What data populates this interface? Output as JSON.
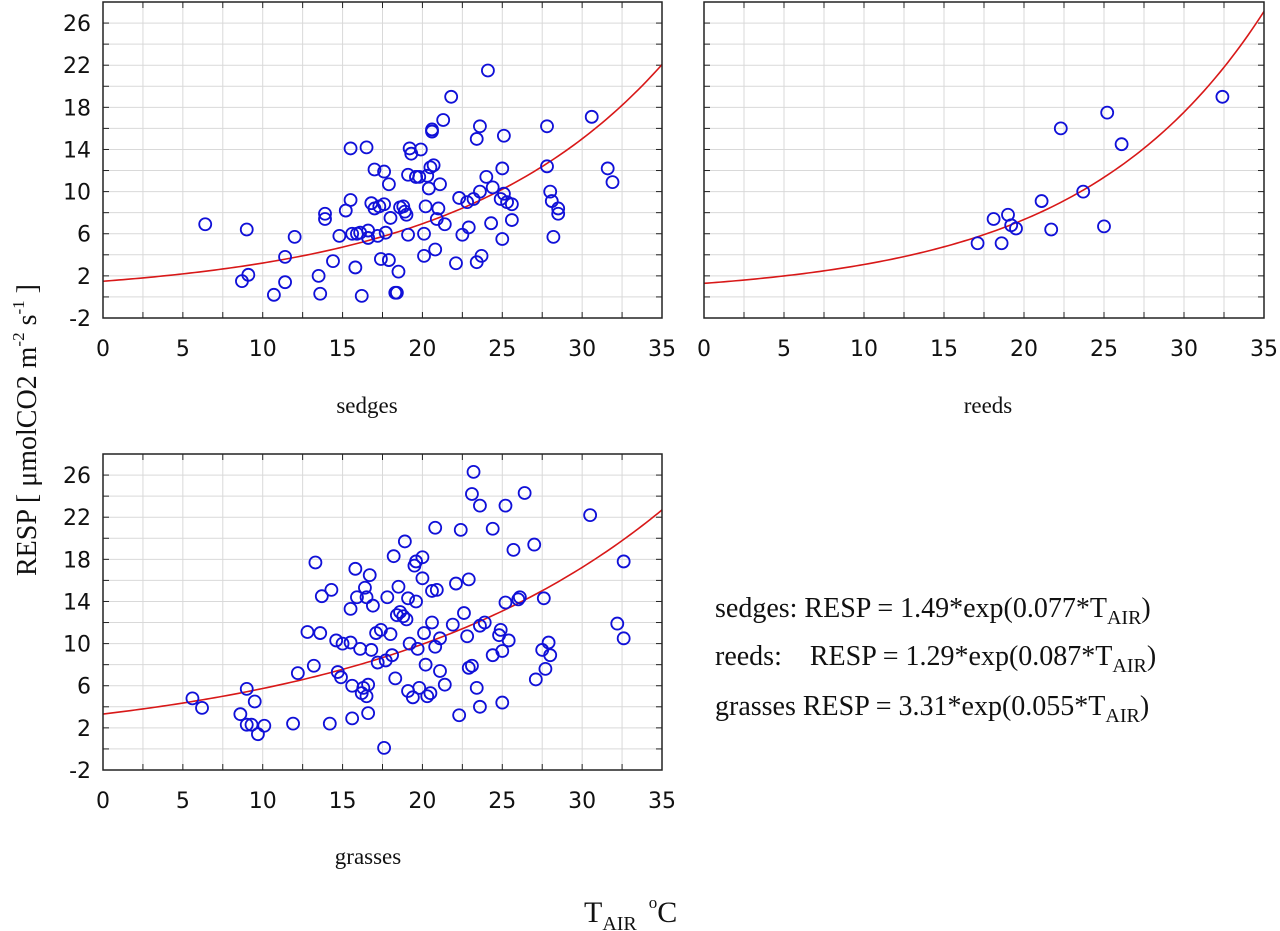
{
  "colors": {
    "points": "#1010d8",
    "fit": "#d81818",
    "grid": "#d9d9d9"
  },
  "figure": {
    "ylabel_main": "RESP  [ μmolCO2 m",
    "ylabel_sup1": "-2",
    "ylabel_mid": " s",
    "ylabel_sup2": "-1",
    "ylabel_end": " ]",
    "xlabel_main": "T",
    "xlabel_sub": "AIR",
    "xlabel_unit_sup": "o",
    "xlabel_unit": "C",
    "equations": [
      {
        "prefix": "sedges: RESP = 1.49*exp(0.077*T",
        "sub": "AIR",
        "suffix": ")"
      },
      {
        "prefix": "reeds:    RESP = 1.29*exp(0.087*T",
        "sub": "AIR",
        "suffix": ")"
      },
      {
        "prefix": "grasses RESP = 3.31*exp(0.055*T",
        "sub": "AIR",
        "suffix": ")"
      }
    ]
  },
  "chart_data": [
    {
      "type": "scatter",
      "title": "sedges",
      "xlabel": "T_AIR °C",
      "ylabel": "RESP [μmolCO2 m-2 s-1]",
      "xlim": [
        0,
        35
      ],
      "ylim": [
        -2,
        28
      ],
      "xticks": [
        0,
        5,
        10,
        15,
        20,
        25,
        30,
        35
      ],
      "yticks": [
        -2,
        2,
        6,
        10,
        14,
        18,
        22,
        26
      ],
      "fit": {
        "a": 1.49,
        "b": 0.077,
        "label": "RESP = 1.49*exp(0.077*T_AIR)"
      },
      "points": [
        [
          6.4,
          6.9
        ],
        [
          8.7,
          1.5
        ],
        [
          9.0,
          6.4
        ],
        [
          9.1,
          2.1
        ],
        [
          10.7,
          0.2
        ],
        [
          11.4,
          3.8
        ],
        [
          11.4,
          1.4
        ],
        [
          12.0,
          5.7
        ],
        [
          13.5,
          2.0
        ],
        [
          13.6,
          0.3
        ],
        [
          13.9,
          7.4
        ],
        [
          13.9,
          7.9
        ],
        [
          14.4,
          3.4
        ],
        [
          14.8,
          5.8
        ],
        [
          15.2,
          8.2
        ],
        [
          15.5,
          9.2
        ],
        [
          15.5,
          14.1
        ],
        [
          15.6,
          6.0
        ],
        [
          15.8,
          2.8
        ],
        [
          16.1,
          6.1
        ],
        [
          16.2,
          0.1
        ],
        [
          16.5,
          14.2
        ],
        [
          16.6,
          5.6
        ],
        [
          16.6,
          6.3
        ],
        [
          16.8,
          8.9
        ],
        [
          17.0,
          12.1
        ],
        [
          17.0,
          8.4
        ],
        [
          17.2,
          5.8
        ],
        [
          17.3,
          8.6
        ],
        [
          17.4,
          3.6
        ],
        [
          17.6,
          8.8
        ],
        [
          17.7,
          6.1
        ],
        [
          17.9,
          3.5
        ],
        [
          17.9,
          10.7
        ],
        [
          18.0,
          7.5
        ],
        [
          18.3,
          0.4
        ],
        [
          18.4,
          0.4
        ],
        [
          18.5,
          2.4
        ],
        [
          18.6,
          8.5
        ],
        [
          18.8,
          8.6
        ],
        [
          19.0,
          7.8
        ],
        [
          19.1,
          11.6
        ],
        [
          19.1,
          5.9
        ],
        [
          19.2,
          14.1
        ],
        [
          19.3,
          13.6
        ],
        [
          19.6,
          11.4
        ],
        [
          19.8,
          11.4
        ],
        [
          19.9,
          14.0
        ],
        [
          20.1,
          6.0
        ],
        [
          20.1,
          3.9
        ],
        [
          20.2,
          8.6
        ],
        [
          20.3,
          11.5
        ],
        [
          20.4,
          10.3
        ],
        [
          20.5,
          12.3
        ],
        [
          20.6,
          15.7
        ],
        [
          20.7,
          12.5
        ],
        [
          20.8,
          4.5
        ],
        [
          20.9,
          7.4
        ],
        [
          21.0,
          8.4
        ],
        [
          21.1,
          10.7
        ],
        [
          21.3,
          16.8
        ],
        [
          21.4,
          6.9
        ],
        [
          21.8,
          19.0
        ],
        [
          22.1,
          3.2
        ],
        [
          22.3,
          9.4
        ],
        [
          22.5,
          5.9
        ],
        [
          22.9,
          6.6
        ],
        [
          23.2,
          9.3
        ],
        [
          23.4,
          15.0
        ],
        [
          23.4,
          3.3
        ],
        [
          23.6,
          16.2
        ],
        [
          23.6,
          10.0
        ],
        [
          23.7,
          3.9
        ],
        [
          24.0,
          11.4
        ],
        [
          24.1,
          21.5
        ],
        [
          24.3,
          7.0
        ],
        [
          24.4,
          10.4
        ],
        [
          25.0,
          5.5
        ],
        [
          25.0,
          12.2
        ],
        [
          25.1,
          15.3
        ],
        [
          25.1,
          9.8
        ],
        [
          25.3,
          9.0
        ],
        [
          25.6,
          8.8
        ],
        [
          25.6,
          7.3
        ],
        [
          27.8,
          12.4
        ],
        [
          27.8,
          16.2
        ],
        [
          28.0,
          10.0
        ],
        [
          28.1,
          9.1
        ],
        [
          28.2,
          5.7
        ],
        [
          28.5,
          8.4
        ],
        [
          28.5,
          7.9
        ],
        [
          30.6,
          17.1
        ],
        [
          31.6,
          12.2
        ],
        [
          31.9,
          10.9
        ],
        [
          20.6,
          15.9
        ],
        [
          19.6,
          11.4
        ],
        [
          22.8,
          9.0
        ],
        [
          24.9,
          9.3
        ],
        [
          18.9,
          8.1
        ],
        [
          15.9,
          6.0
        ],
        [
          17.6,
          11.9
        ]
      ]
    },
    {
      "type": "scatter",
      "title": "reeds",
      "xlabel": "T_AIR °C",
      "ylabel": "RESP [μmolCO2 m-2 s-1]",
      "xlim": [
        0,
        35
      ],
      "ylim": [
        -2,
        28
      ],
      "xticks": [
        0,
        5,
        10,
        15,
        20,
        25,
        30,
        35
      ],
      "yticks": [],
      "fit": {
        "a": 1.29,
        "b": 0.087,
        "label": "RESP = 1.29*exp(0.087*T_AIR)"
      },
      "points": [
        [
          17.1,
          5.1
        ],
        [
          18.1,
          7.4
        ],
        [
          18.6,
          5.1
        ],
        [
          19.0,
          7.8
        ],
        [
          19.2,
          6.8
        ],
        [
          19.5,
          6.5
        ],
        [
          21.1,
          9.1
        ],
        [
          21.7,
          6.4
        ],
        [
          22.3,
          16.0
        ],
        [
          23.7,
          10.0
        ],
        [
          25.0,
          6.7
        ],
        [
          25.2,
          17.5
        ],
        [
          26.1,
          14.5
        ],
        [
          32.4,
          19.0
        ]
      ]
    },
    {
      "type": "scatter",
      "title": "grasses",
      "xlabel": "T_AIR °C",
      "ylabel": "RESP [μmolCO2 m-2 s-1]",
      "xlim": [
        0,
        35
      ],
      "ylim": [
        -2,
        28
      ],
      "xticks": [
        0,
        5,
        10,
        15,
        20,
        25,
        30,
        35
      ],
      "yticks": [
        -2,
        2,
        6,
        10,
        14,
        18,
        22,
        26
      ],
      "fit": {
        "a": 3.31,
        "b": 0.055,
        "label": "RESP = 3.31*exp(0.055*T_AIR)"
      },
      "points": [
        [
          5.6,
          4.8
        ],
        [
          6.2,
          3.9
        ],
        [
          8.6,
          3.3
        ],
        [
          9.0,
          5.7
        ],
        [
          9.0,
          2.3
        ],
        [
          9.3,
          2.3
        ],
        [
          9.5,
          4.5
        ],
        [
          9.7,
          1.4
        ],
        [
          10.1,
          2.2
        ],
        [
          11.9,
          2.4
        ],
        [
          12.2,
          7.2
        ],
        [
          12.8,
          11.1
        ],
        [
          13.2,
          7.9
        ],
        [
          13.3,
          17.7
        ],
        [
          13.6,
          11.0
        ],
        [
          13.7,
          14.5
        ],
        [
          14.2,
          2.4
        ],
        [
          14.3,
          15.1
        ],
        [
          14.6,
          10.3
        ],
        [
          14.7,
          7.3
        ],
        [
          14.9,
          6.8
        ],
        [
          15.0,
          10.0
        ],
        [
          15.5,
          10.1
        ],
        [
          15.5,
          13.3
        ],
        [
          15.6,
          2.9
        ],
        [
          15.6,
          6.0
        ],
        [
          15.8,
          17.1
        ],
        [
          15.9,
          14.4
        ],
        [
          16.1,
          9.5
        ],
        [
          16.2,
          5.3
        ],
        [
          16.3,
          5.8
        ],
        [
          16.4,
          15.3
        ],
        [
          16.5,
          14.4
        ],
        [
          16.6,
          3.4
        ],
        [
          16.6,
          6.1
        ],
        [
          16.7,
          16.5
        ],
        [
          16.8,
          9.4
        ],
        [
          16.9,
          13.6
        ],
        [
          17.1,
          11.0
        ],
        [
          17.2,
          8.2
        ],
        [
          17.4,
          11.3
        ],
        [
          17.6,
          0.1
        ],
        [
          17.7,
          8.4
        ],
        [
          17.8,
          14.4
        ],
        [
          18.0,
          10.9
        ],
        [
          18.1,
          8.9
        ],
        [
          18.2,
          18.3
        ],
        [
          18.3,
          6.7
        ],
        [
          18.4,
          12.7
        ],
        [
          18.5,
          15.4
        ],
        [
          18.6,
          13.0
        ],
        [
          18.8,
          12.6
        ],
        [
          18.9,
          19.7
        ],
        [
          19.0,
          12.3
        ],
        [
          19.1,
          14.3
        ],
        [
          19.1,
          5.5
        ],
        [
          19.2,
          10.0
        ],
        [
          19.4,
          4.9
        ],
        [
          19.5,
          17.4
        ],
        [
          19.6,
          17.8
        ],
        [
          19.6,
          14.0
        ],
        [
          19.7,
          9.5
        ],
        [
          19.8,
          5.8
        ],
        [
          20.0,
          16.2
        ],
        [
          20.0,
          18.2
        ],
        [
          20.1,
          11.0
        ],
        [
          20.2,
          8.0
        ],
        [
          20.3,
          5.0
        ],
        [
          20.5,
          5.3
        ],
        [
          20.6,
          12.0
        ],
        [
          20.6,
          15.0
        ],
        [
          20.8,
          9.7
        ],
        [
          20.8,
          21.0
        ],
        [
          20.9,
          15.1
        ],
        [
          21.1,
          10.5
        ],
        [
          21.1,
          7.4
        ],
        [
          21.4,
          6.1
        ],
        [
          21.9,
          11.8
        ],
        [
          22.1,
          15.7
        ],
        [
          22.3,
          3.2
        ],
        [
          22.4,
          20.8
        ],
        [
          22.6,
          12.9
        ],
        [
          22.8,
          10.7
        ],
        [
          22.9,
          16.1
        ],
        [
          22.9,
          7.7
        ],
        [
          23.1,
          24.2
        ],
        [
          23.1,
          7.9
        ],
        [
          23.2,
          26.3
        ],
        [
          23.4,
          5.8
        ],
        [
          23.6,
          11.7
        ],
        [
          23.6,
          23.1
        ],
        [
          23.6,
          4.0
        ],
        [
          23.9,
          12.0
        ],
        [
          24.4,
          20.9
        ],
        [
          24.4,
          8.9
        ],
        [
          24.8,
          10.8
        ],
        [
          25.0,
          9.3
        ],
        [
          25.0,
          4.4
        ],
        [
          25.2,
          13.9
        ],
        [
          25.2,
          23.1
        ],
        [
          25.4,
          10.3
        ],
        [
          25.7,
          18.9
        ],
        [
          26.0,
          14.2
        ],
        [
          26.1,
          14.4
        ],
        [
          26.4,
          24.3
        ],
        [
          27.0,
          19.4
        ],
        [
          27.1,
          6.6
        ],
        [
          27.5,
          9.4
        ],
        [
          27.6,
          14.3
        ],
        [
          27.7,
          7.6
        ],
        [
          27.9,
          10.1
        ],
        [
          28.0,
          8.9
        ],
        [
          30.5,
          22.2
        ],
        [
          32.2,
          11.9
        ],
        [
          32.6,
          10.5
        ],
        [
          32.6,
          17.8
        ],
        [
          24.9,
          11.3
        ],
        [
          16.5,
          5.0
        ]
      ]
    }
  ]
}
